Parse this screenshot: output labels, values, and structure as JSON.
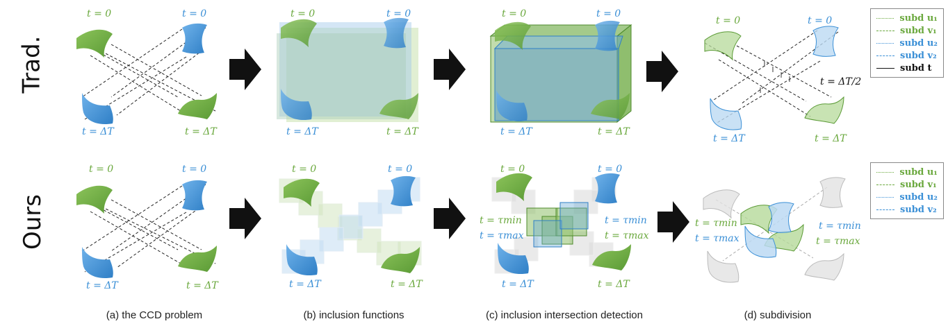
{
  "row_labels": {
    "top": "Trad.",
    "bottom": "Ours"
  },
  "captions": [
    "(a) the CCD problem",
    "(b) inclusion functions",
    "(c) inclusion intersection detection",
    "(d) subdivision"
  ],
  "time_labels": {
    "t0": "t = 0",
    "tdT": "t = ΔT",
    "half": "t = ΔT/2",
    "tau_min_italic": "t = τmin",
    "tau_max": "t = τmax"
  },
  "legend_top": [
    {
      "label": "subd u₁",
      "color": "#6aa83d",
      "style": "dashdot"
    },
    {
      "label": "subd v₁",
      "color": "#6aa83d",
      "style": "dashed"
    },
    {
      "label": "subd u₂",
      "color": "#3a8fd6",
      "style": "dashdot"
    },
    {
      "label": "subd v₂",
      "color": "#3a8fd6",
      "style": "dashed"
    },
    {
      "label": "subd t",
      "color": "#111111",
      "style": "tick"
    }
  ],
  "legend_bottom": [
    {
      "label": "subd u₁",
      "color": "#6aa83d",
      "style": "dashdot"
    },
    {
      "label": "subd v₁",
      "color": "#6aa83d",
      "style": "dashed"
    },
    {
      "label": "subd u₂",
      "color": "#3a8fd6",
      "style": "dashdot"
    },
    {
      "label": "subd v₂",
      "color": "#3a8fd6",
      "style": "dashed"
    }
  ],
  "colors": {
    "green": "#6aa83d",
    "blue": "#3a8fd6",
    "arrow": "#111111"
  }
}
